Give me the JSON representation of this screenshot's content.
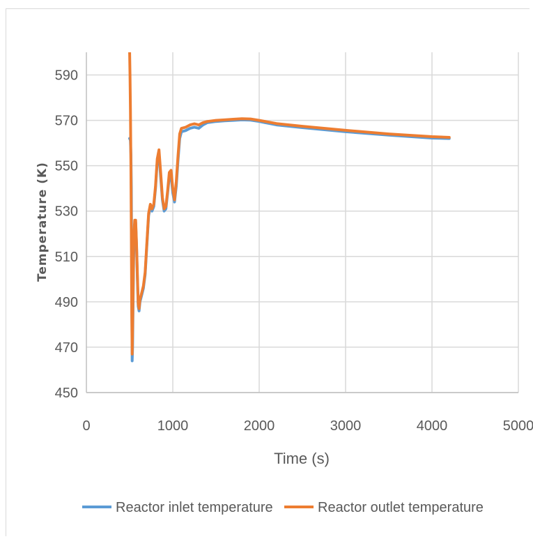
{
  "chart_data": {
    "type": "line",
    "title": "",
    "xlabel": "Time (s)",
    "ylabel": "Temperature (K)",
    "xlim": [
      0,
      5000
    ],
    "ylim": [
      450,
      600
    ],
    "xticks": [
      "0",
      "1000",
      "2000",
      "3000",
      "4000",
      "5000"
    ],
    "yticks": [
      "450",
      "470",
      "490",
      "510",
      "530",
      "550",
      "570",
      "590"
    ],
    "grid": true,
    "legend": "bottom",
    "series": [
      {
        "name": "Reactor inlet temperature",
        "color": "#5b9bd5",
        "x": [
          500,
          505,
          510,
          515,
          520,
          525,
          530,
          535,
          540,
          545,
          550,
          560,
          570,
          580,
          590,
          600,
          610,
          620,
          640,
          660,
          680,
          700,
          720,
          740,
          760,
          780,
          800,
          820,
          840,
          860,
          880,
          900,
          920,
          940,
          960,
          980,
          1000,
          1020,
          1040,
          1060,
          1080,
          1100,
          1150,
          1200,
          1250,
          1300,
          1350,
          1400,
          1500,
          1600,
          1700,
          1800,
          1900,
          2000,
          2200,
          2500,
          3000,
          3500,
          4000,
          4200
        ],
        "y": [
          562,
          562,
          561,
          555,
          540,
          500,
          464,
          470,
          490,
          505,
          515,
          524,
          525,
          515,
          500,
          488,
          486,
          490,
          493,
          496,
          502,
          515,
          528,
          532,
          530,
          532,
          540,
          552,
          555,
          545,
          535,
          530,
          531,
          538,
          545,
          546,
          538,
          534,
          541,
          552,
          562,
          565,
          565.5,
          566.5,
          567,
          566.5,
          568,
          569,
          569.5,
          569.8,
          570,
          570.2,
          570.1,
          569.5,
          568,
          566.8,
          565,
          563.5,
          562.2,
          562
        ]
      },
      {
        "name": "Reactor outlet temperature",
        "color": "#ed7d31",
        "x": [
          500,
          505,
          510,
          515,
          520,
          525,
          530,
          535,
          540,
          545,
          550,
          560,
          570,
          580,
          590,
          600,
          610,
          620,
          640,
          660,
          680,
          700,
          720,
          740,
          760,
          780,
          800,
          820,
          840,
          860,
          880,
          900,
          920,
          940,
          960,
          980,
          1000,
          1020,
          1040,
          1060,
          1080,
          1100,
          1150,
          1200,
          1250,
          1300,
          1350,
          1400,
          1500,
          1600,
          1700,
          1800,
          1900,
          2000,
          2200,
          2500,
          3000,
          3500,
          4000,
          4200
        ],
        "y": [
          601,
          590,
          575,
          550,
          520,
          485,
          467,
          478,
          495,
          510,
          520,
          526,
          526,
          516,
          502,
          489,
          487,
          491,
          494,
          497,
          503,
          516,
          529,
          533,
          531,
          533,
          541,
          553,
          557,
          547,
          536,
          531,
          532,
          539,
          547,
          548,
          540,
          535,
          543,
          554,
          564,
          566.5,
          567,
          568,
          568.5,
          568,
          569,
          569.5,
          570,
          570.2,
          570.5,
          570.7,
          570.6,
          570,
          568.6,
          567.4,
          565.6,
          564,
          562.8,
          562.5
        ]
      }
    ]
  }
}
